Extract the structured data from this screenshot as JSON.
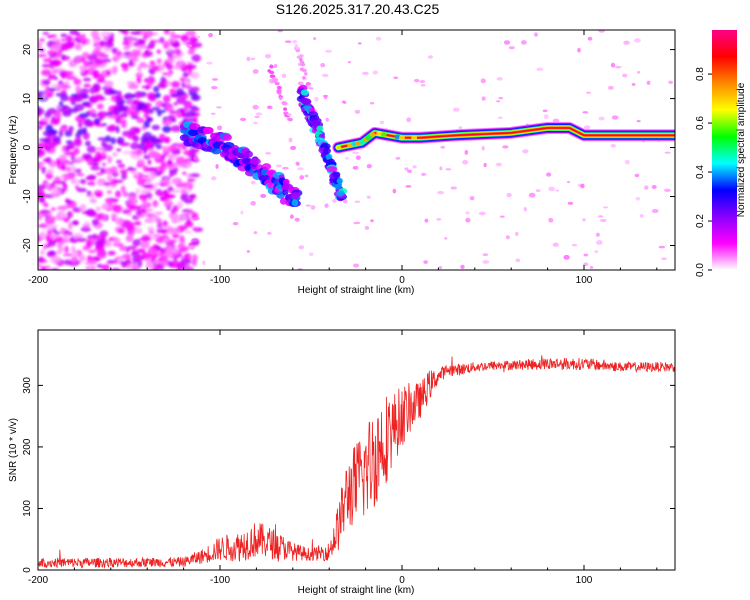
{
  "figure": {
    "title": "S126.2025.317.20.43.C25"
  },
  "chart_data": [
    {
      "type": "heatmap",
      "title": "S126.2025.317.20.43.C25",
      "xlabel": "Height of straight line (km)",
      "ylabel": "Frequency (Hz)",
      "xlim": [
        -200,
        150
      ],
      "ylim": [
        -25,
        24
      ],
      "xticks": [
        {
          "value": -200,
          "label": "-200"
        },
        {
          "value": -100,
          "label": "-100"
        },
        {
          "value": 0,
          "label": "0"
        },
        {
          "value": 100,
          "label": "100"
        }
      ],
      "yticks": [
        {
          "value": -20,
          "label": "-20"
        },
        {
          "value": -10,
          "label": "-10"
        },
        {
          "value": 0,
          "label": "0"
        },
        {
          "value": 10,
          "label": "10"
        },
        {
          "value": 20,
          "label": "20"
        }
      ],
      "colorbar": {
        "label": "Normalized spectral amplitude",
        "range": [
          0,
          0.98
        ],
        "colors": [
          "#ffffff",
          "#ff00ff",
          "#8800ff",
          "#0000ff",
          "#00ffff",
          "#00ff00",
          "#ffff00",
          "#ff8800",
          "#ff0000",
          "#ff0088"
        ],
        "ticks": [
          {
            "value": 0.0,
            "label": "0.0"
          },
          {
            "value": 0.2,
            "label": "0.2"
          },
          {
            "value": 0.4,
            "label": "0.4"
          },
          {
            "value": 0.6,
            "label": "0.6"
          },
          {
            "value": 0.8,
            "label": "0.8"
          }
        ]
      },
      "features": [
        {
          "name": "diffuse-noise",
          "x_range": [
            -200,
            -120
          ],
          "freq_range": [
            -25,
            24
          ],
          "amplitude": 0.15
        },
        {
          "name": "descending-band-1",
          "points": [
            [
              -120,
              3
            ],
            [
              -100,
              1
            ],
            [
              -85,
              -3
            ],
            [
              -70,
              -7
            ],
            [
              -58,
              -11
            ]
          ],
          "amplitude": 0.35
        },
        {
          "name": "descending-band-2",
          "points": [
            [
              -55,
              11
            ],
            [
              -48,
              5
            ],
            [
              -40,
              -3
            ],
            [
              -33,
              -10
            ]
          ],
          "amplitude": 0.4
        },
        {
          "name": "faint-streak",
          "points": [
            [
              -72,
              16
            ],
            [
              -62,
              6
            ]
          ],
          "amplitude": 0.08
        },
        {
          "name": "faint-streak-2",
          "points": [
            [
              -58,
              21
            ],
            [
              -52,
              13
            ]
          ],
          "amplitude": 0.06
        },
        {
          "name": "ridge",
          "points": [
            [
              -35,
              0
            ],
            [
              -22,
              1
            ],
            [
              -15,
              3
            ],
            [
              0,
              2
            ],
            [
              10,
              2
            ],
            [
              30,
              2.5
            ],
            [
              60,
              3
            ],
            [
              80,
              4
            ],
            [
              92,
              4
            ],
            [
              100,
              2.5
            ],
            [
              150,
              2.5
            ]
          ],
          "amplitude": 0.95
        }
      ]
    },
    {
      "type": "line",
      "title": "",
      "xlabel": "Height of straight line (km)",
      "ylabel": "SNR (10 * v/v)",
      "xlim": [
        -200,
        150
      ],
      "ylim": [
        0,
        390
      ],
      "color": "#ee2222",
      "xticks": [
        {
          "value": -200,
          "label": "-200"
        },
        {
          "value": -100,
          "label": "-100"
        },
        {
          "value": 0,
          "label": "0"
        },
        {
          "value": 100,
          "label": "100"
        }
      ],
      "yticks": [
        {
          "value": 0,
          "label": "0"
        },
        {
          "value": 100,
          "label": "100"
        },
        {
          "value": 200,
          "label": "200"
        },
        {
          "value": 300,
          "label": "300"
        }
      ],
      "series": [
        {
          "name": "SNR",
          "x": [
            -200,
            -150,
            -120,
            -110,
            -100,
            -90,
            -80,
            -70,
            -60,
            -50,
            -40,
            -35,
            -30,
            -25,
            -20,
            -15,
            -10,
            -5,
            0,
            5,
            10,
            15,
            20,
            25,
            30,
            40,
            50,
            60,
            80,
            100,
            120,
            150
          ],
          "values": [
            12,
            12,
            13,
            22,
            35,
            38,
            50,
            42,
            30,
            25,
            30,
            70,
            125,
            140,
            160,
            185,
            210,
            230,
            250,
            265,
            275,
            300,
            315,
            325,
            325,
            330,
            332,
            333,
            335,
            335,
            330,
            330
          ],
          "amplitude": [
            8,
            8,
            8,
            12,
            20,
            25,
            30,
            25,
            15,
            10,
            15,
            40,
            60,
            70,
            80,
            85,
            80,
            60,
            50,
            40,
            30,
            25,
            12,
            10,
            10,
            8,
            8,
            8,
            10,
            10,
            8,
            8
          ]
        }
      ]
    }
  ]
}
